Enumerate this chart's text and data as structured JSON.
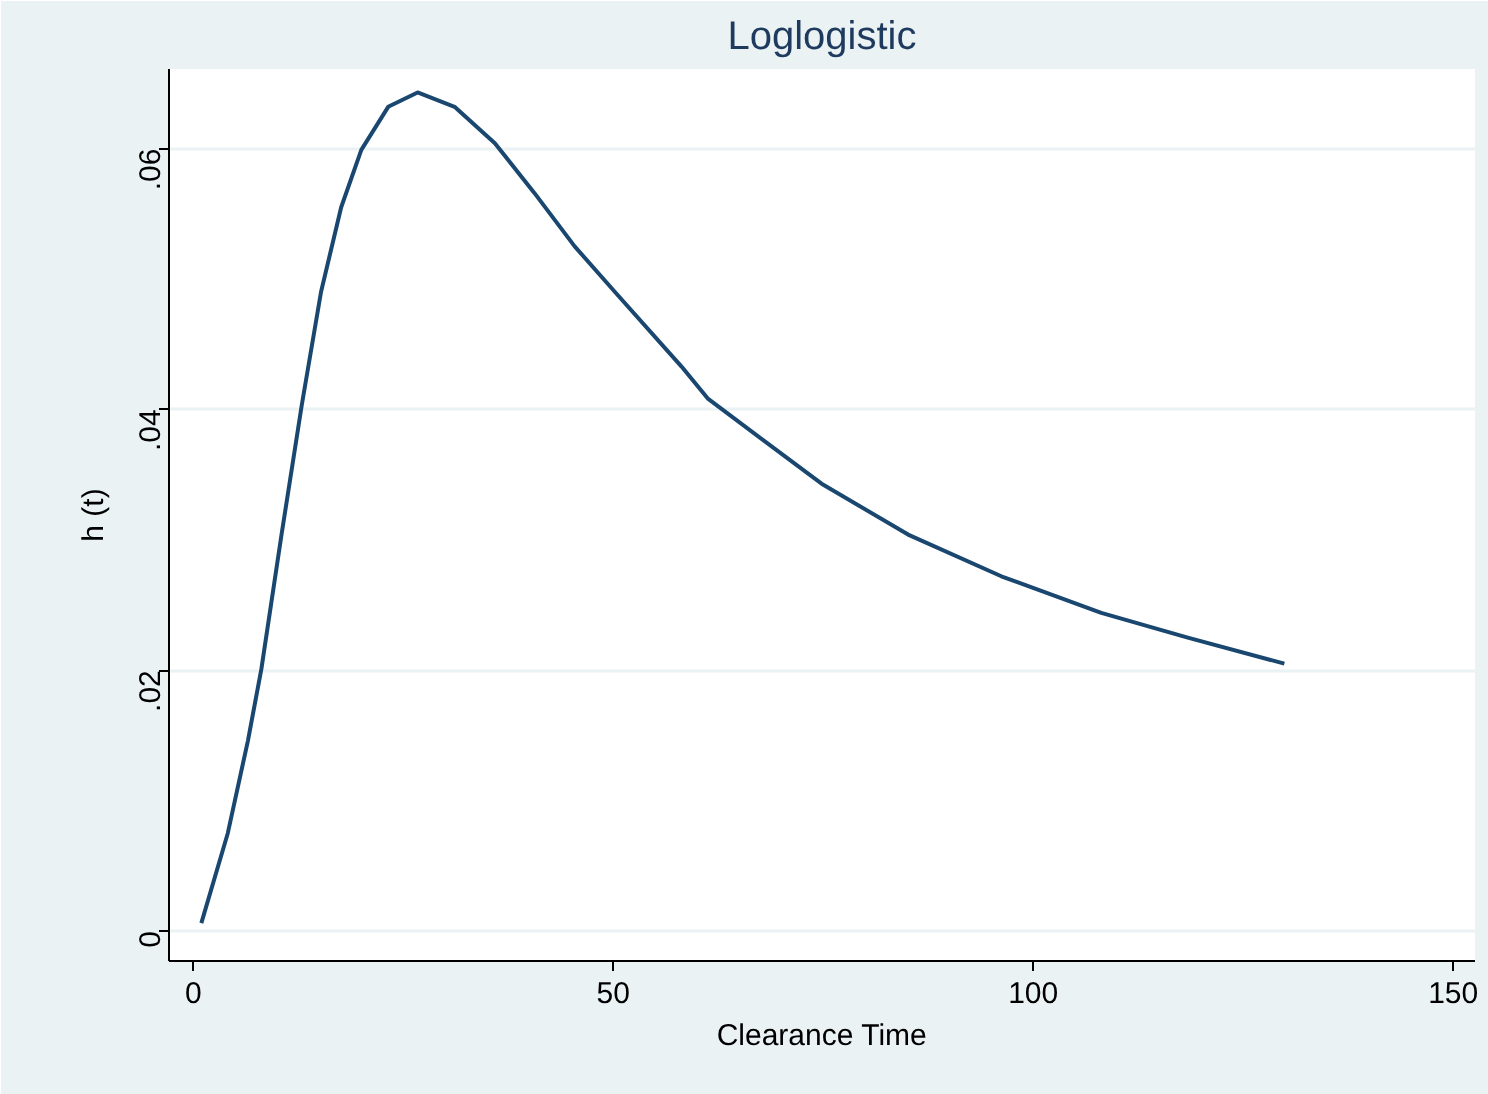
{
  "chart_data": {
    "type": "line",
    "title": "Loglogistic",
    "xlabel": "Clearance Time",
    "ylabel": "h (t)",
    "x": [
      0.95,
      4.1,
      6.5,
      8.1,
      10.5,
      12.9,
      15.2,
      17.6,
      20,
      23.2,
      26.7,
      31.1,
      35.9,
      40.6,
      45.4,
      50.2,
      58.1,
      61.3,
      74.8,
      85.1,
      96.2,
      108.1,
      118.4,
      129.9
    ],
    "series": [
      {
        "color": "#1a476f",
        "values": [
          0.0006,
          0.0075,
          0.0146,
          0.0201,
          0.0304,
          0.0403,
          0.049,
          0.0555,
          0.0599,
          0.0632,
          0.0643,
          0.0632,
          0.0604,
          0.0566,
          0.0525,
          0.049,
          0.0433,
          0.0408,
          0.0343,
          0.0304,
          0.0272,
          0.0244,
          0.0225,
          0.0205
        ]
      }
    ],
    "xlim": [
      -2.9,
      152.6
    ],
    "ylim": [
      -0.0023,
      0.0661
    ],
    "xticks": [
      0,
      50,
      100,
      150
    ],
    "yticks": [
      0,
      {
        "value": 0.02,
        "label": ".02"
      },
      {
        "value": 0.04,
        "label": ".04"
      },
      {
        "value": 0.06,
        "label": ".06"
      }
    ],
    "grid": "y",
    "marker": "none",
    "line_style": "solid"
  }
}
